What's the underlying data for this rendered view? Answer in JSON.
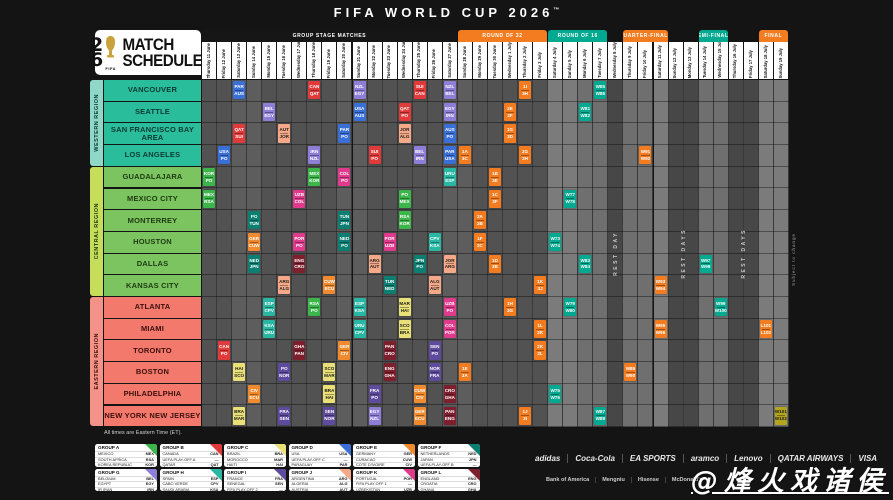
{
  "title": "FIFA WORLD CUP 2026",
  "title_tm": "™",
  "logo": {
    "digit_top": "2",
    "digit_bottom": "6",
    "line1": "MATCH",
    "line2": "SCHEDULE",
    "fifa": "FIFA"
  },
  "notes": {
    "times": "All times are Eastern Time (ET).",
    "margin": "Subject to change"
  },
  "header_sections": [
    {
      "key": "GS",
      "label": "GROUP STAGE MATCHES",
      "color": "#161616",
      "from": 0,
      "to": 16
    },
    {
      "key": "R32",
      "label": "ROUND OF 32",
      "color": "#f47c20",
      "from": 17,
      "to": 22
    },
    {
      "key": "R16",
      "label": "ROUND OF 16",
      "color": "#00a98f",
      "from": 23,
      "to": 26
    },
    {
      "key": "QF",
      "label": "QUARTER-FINALS",
      "color": "#f47c20",
      "from": 28,
      "to": 30
    },
    {
      "key": "SF",
      "label": "SEMI-FINALS",
      "color": "#00a98f",
      "from": 33,
      "to": 34
    },
    {
      "key": "FIN",
      "label": "FINAL",
      "color": "#f47c20",
      "from": 37,
      "to": 38
    }
  ],
  "rest_blocks": [
    {
      "from": 27,
      "to": 27,
      "label": "REST DAY"
    },
    {
      "from": 31,
      "to": 32,
      "label": "REST DAYS"
    },
    {
      "from": 35,
      "to": 36,
      "label": "REST DAYS"
    }
  ],
  "columns": [
    {
      "day": "Thursday",
      "date": "11 June",
      "sec": "GS",
      "we": false
    },
    {
      "day": "Friday",
      "date": "12 June",
      "sec": "GS",
      "we": false
    },
    {
      "day": "Saturday",
      "date": "13 June",
      "sec": "GS",
      "we": true
    },
    {
      "day": "Sunday",
      "date": "14 June",
      "sec": "GS",
      "we": true
    },
    {
      "day": "Monday",
      "date": "15 June",
      "sec": "GS",
      "we": false
    },
    {
      "day": "Tuesday",
      "date": "16 June",
      "sec": "GS",
      "we": false
    },
    {
      "day": "Wednesday",
      "date": "17 June",
      "sec": "GS",
      "we": false
    },
    {
      "day": "Thursday",
      "date": "18 June",
      "sec": "GS",
      "we": false
    },
    {
      "day": "Friday",
      "date": "19 June",
      "sec": "GS",
      "we": false
    },
    {
      "day": "Saturday",
      "date": "20 June",
      "sec": "GS",
      "we": true
    },
    {
      "day": "Sunday",
      "date": "21 June",
      "sec": "GS",
      "we": true
    },
    {
      "day": "Monday",
      "date": "22 June",
      "sec": "GS",
      "we": false
    },
    {
      "day": "Tuesday",
      "date": "23 June",
      "sec": "GS",
      "we": false
    },
    {
      "day": "Wednesday",
      "date": "24 June",
      "sec": "GS",
      "we": false
    },
    {
      "day": "Thursday",
      "date": "25 June",
      "sec": "GS",
      "we": false
    },
    {
      "day": "Friday",
      "date": "26 June",
      "sec": "GS",
      "we": false
    },
    {
      "day": "Saturday",
      "date": "27 June",
      "sec": "GS",
      "we": true
    },
    {
      "day": "Sunday",
      "date": "28 June",
      "sec": "R32",
      "we": true
    },
    {
      "day": "Monday",
      "date": "29 June",
      "sec": "R32",
      "we": false
    },
    {
      "day": "Tuesday",
      "date": "30 June",
      "sec": "R32",
      "we": false
    },
    {
      "day": "Wednesday",
      "date": "1 July",
      "sec": "R32",
      "we": false
    },
    {
      "day": "Thursday",
      "date": "2 July",
      "sec": "R32",
      "we": false
    },
    {
      "day": "Friday",
      "date": "3 July",
      "sec": "R32",
      "we": false
    },
    {
      "day": "Saturday",
      "date": "4 July",
      "sec": "R16",
      "we": true
    },
    {
      "day": "Sunday",
      "date": "5 July",
      "sec": "R16",
      "we": true
    },
    {
      "day": "Monday",
      "date": "6 July",
      "sec": "R16",
      "we": false
    },
    {
      "day": "Tuesday",
      "date": "7 July",
      "sec": "R16",
      "we": false
    },
    {
      "day": "Wednesday",
      "date": "8 July",
      "sec": "REST",
      "we": false
    },
    {
      "day": "Thursday",
      "date": "9 July",
      "sec": "QF",
      "we": false
    },
    {
      "day": "Friday",
      "date": "10 July",
      "sec": "QF",
      "we": false
    },
    {
      "day": "Saturday",
      "date": "11 July",
      "sec": "QF",
      "we": true
    },
    {
      "day": "Sunday",
      "date": "12 July",
      "sec": "REST",
      "we": true
    },
    {
      "day": "Monday",
      "date": "13 July",
      "sec": "REST",
      "we": false
    },
    {
      "day": "Tuesday",
      "date": "14 July",
      "sec": "SF",
      "we": false
    },
    {
      "day": "Wednesday",
      "date": "15 July",
      "sec": "SF",
      "we": false
    },
    {
      "day": "Thursday",
      "date": "16 July",
      "sec": "REST",
      "we": false
    },
    {
      "day": "Friday",
      "date": "17 July",
      "sec": "REST",
      "we": false
    },
    {
      "day": "Saturday",
      "date": "18 July",
      "sec": "FIN",
      "we": true
    },
    {
      "day": "Sunday",
      "date": "19 July",
      "sec": "FIN",
      "we": true
    }
  ],
  "regions": [
    {
      "name": "WESTERN REGION",
      "strip_color": "#8fd8c8",
      "city_color": "#29bd9c",
      "text_color": "#0c3a31",
      "cities": [
        "VANCOUVER",
        "SEATTLE",
        "SAN FRANCISCO BAY AREA",
        "LOS ANGELES"
      ]
    },
    {
      "name": "CENTRAL REGION",
      "strip_color": "#c5dd58",
      "city_color": "#7cc45f",
      "text_color": "#1d3a12",
      "cities": [
        "GUADALAJARA",
        "MEXICO CITY",
        "MONTERREY",
        "HOUSTON",
        "DALLAS",
        "KANSAS CITY"
      ]
    },
    {
      "name": "EASTERN REGION",
      "strip_color": "#f59287",
      "city_color": "#f3796d",
      "text_color": "#3d100c",
      "cities": [
        "ATLANTA",
        "MIAMI",
        "TORONTO",
        "BOSTON",
        "PHILADELPHIA",
        "NEW YORK NEW JERSEY"
      ]
    }
  ],
  "phase_colors": {
    "A": "#3cb54a",
    "B": "#e03a3a",
    "C": "#e9e178",
    "D": "#3a6fd8",
    "E": "#f08a2e",
    "F": "#0c7f72",
    "G": "#8f7ed8",
    "H": "#27b7a2",
    "I": "#5f4b9e",
    "J": "#f5a988",
    "K": "#e03a8c",
    "L": "#7e1f2e",
    "R32": "#f47c20",
    "R16": "#00a98f",
    "QF": "#f47c20",
    "SF": "#00a98f",
    "BR": "#f47c20",
    "FIN": "#b3a51e"
  },
  "dark_text_phases": [
    "C",
    "J",
    "FIN"
  ],
  "matches": [
    [
      0,
      2,
      "D",
      "PAR",
      "AUS"
    ],
    [
      0,
      7,
      "B",
      "CAN",
      "QAT"
    ],
    [
      0,
      10,
      "G",
      "NZL",
      "EGY"
    ],
    [
      0,
      14,
      "B",
      "SUI",
      "CAN"
    ],
    [
      0,
      16,
      "G",
      "NZL",
      "BEL"
    ],
    [
      1,
      4,
      "G",
      "BEL",
      "EGY"
    ],
    [
      1,
      10,
      "D",
      "USA",
      "AUS"
    ],
    [
      1,
      13,
      "B",
      "QAT",
      "PO"
    ],
    [
      1,
      16,
      "G",
      "EGY",
      "IRN"
    ],
    [
      2,
      2,
      "B",
      "QAT",
      "SUI"
    ],
    [
      2,
      5,
      "J",
      "AUT",
      "JOR"
    ],
    [
      2,
      9,
      "D",
      "PAR",
      "PO"
    ],
    [
      2,
      13,
      "J",
      "JOR",
      "ALG"
    ],
    [
      2,
      16,
      "D",
      "AUS",
      "PO"
    ],
    [
      3,
      1,
      "D",
      "USA",
      "PO"
    ],
    [
      3,
      7,
      "G",
      "IRN",
      "NZL"
    ],
    [
      3,
      11,
      "B",
      "SUI",
      "PO"
    ],
    [
      3,
      14,
      "G",
      "BEL",
      "IRN"
    ],
    [
      3,
      16,
      "D",
      "PAR",
      "USA"
    ],
    [
      4,
      0,
      "A",
      "KOR",
      "PO"
    ],
    [
      4,
      7,
      "A",
      "MEX",
      "KOR"
    ],
    [
      4,
      9,
      "K",
      "COL",
      "PO"
    ],
    [
      4,
      16,
      "H",
      "URU",
      "ESP"
    ],
    [
      5,
      0,
      "A",
      "MEX",
      "RSA"
    ],
    [
      5,
      6,
      "K",
      "UZB",
      "COL"
    ],
    [
      5,
      13,
      "A",
      "PO",
      "MEX"
    ],
    [
      6,
      3,
      "F",
      "PO",
      "TUN"
    ],
    [
      6,
      9,
      "F",
      "TUN",
      "JPN"
    ],
    [
      6,
      13,
      "A",
      "RSA",
      "KOR"
    ],
    [
      7,
      3,
      "E",
      "GER",
      "CUW"
    ],
    [
      7,
      6,
      "K",
      "POR",
      "PO"
    ],
    [
      7,
      9,
      "F",
      "NED",
      "PO"
    ],
    [
      7,
      12,
      "K",
      "POR",
      "UZB"
    ],
    [
      7,
      15,
      "H",
      "CPV",
      "KSA"
    ],
    [
      8,
      3,
      "F",
      "NED",
      "JPN"
    ],
    [
      8,
      6,
      "L",
      "ENG",
      "CRO"
    ],
    [
      8,
      11,
      "J",
      "ARG",
      "AUT"
    ],
    [
      8,
      14,
      "F",
      "JPN",
      "PO"
    ],
    [
      8,
      16,
      "J",
      "JOR",
      "ARG"
    ],
    [
      9,
      5,
      "J",
      "ARG",
      "ALG"
    ],
    [
      9,
      8,
      "E",
      "CUW",
      "ECU"
    ],
    [
      9,
      12,
      "F",
      "TUN",
      "NED"
    ],
    [
      9,
      15,
      "J",
      "ALG",
      "AUT"
    ],
    [
      10,
      4,
      "H",
      "ESP",
      "CPV"
    ],
    [
      10,
      7,
      "A",
      "RSA",
      "PO"
    ],
    [
      10,
      10,
      "H",
      "ESP",
      "KSA"
    ],
    [
      10,
      13,
      "C",
      "MAR",
      "HAI"
    ],
    [
      10,
      16,
      "K",
      "UZB",
      "PO"
    ],
    [
      11,
      4,
      "H",
      "KSA",
      "URU"
    ],
    [
      11,
      10,
      "H",
      "URU",
      "CPV"
    ],
    [
      11,
      13,
      "C",
      "SCO",
      "BRA"
    ],
    [
      11,
      16,
      "K",
      "COL",
      "POR"
    ],
    [
      12,
      1,
      "B",
      "CAN",
      "PO"
    ],
    [
      12,
      6,
      "L",
      "GHA",
      "PAN"
    ],
    [
      12,
      9,
      "E",
      "GER",
      "CIV"
    ],
    [
      12,
      12,
      "L",
      "PAN",
      "CRO"
    ],
    [
      12,
      15,
      "I",
      "SEN",
      "PO"
    ],
    [
      13,
      2,
      "C",
      "HAI",
      "SCO"
    ],
    [
      13,
      5,
      "I",
      "PO",
      "NOR"
    ],
    [
      13,
      8,
      "C",
      "SCO",
      "MAR"
    ],
    [
      13,
      12,
      "L",
      "ENG",
      "GHA"
    ],
    [
      13,
      15,
      "I",
      "NOR",
      "FRA"
    ],
    [
      14,
      3,
      "E",
      "CIV",
      "ECU"
    ],
    [
      14,
      8,
      "C",
      "BRA",
      "HAI"
    ],
    [
      14,
      11,
      "I",
      "FRA",
      "PO"
    ],
    [
      14,
      14,
      "E",
      "CUW",
      "CIV"
    ],
    [
      14,
      16,
      "L",
      "CRO",
      "GHA"
    ],
    [
      15,
      2,
      "C",
      "BRA",
      "MAR"
    ],
    [
      15,
      5,
      "I",
      "FRA",
      "SEN"
    ],
    [
      15,
      8,
      "I",
      "SEN",
      "NOR"
    ],
    [
      15,
      11,
      "G",
      "EGY",
      "NZL"
    ],
    [
      15,
      14,
      "E",
      "GER",
      "ECU"
    ],
    [
      15,
      16,
      "L",
      "PAN",
      "ENG"
    ],
    [
      3,
      17,
      "R32",
      "1A",
      "3C"
    ],
    [
      13,
      17,
      "R32",
      "1E",
      "3A"
    ],
    [
      7,
      18,
      "R32",
      "1F",
      "2C"
    ],
    [
      6,
      18,
      "R32",
      "2A",
      "2B"
    ],
    [
      4,
      19,
      "R32",
      "1B",
      "3E"
    ],
    [
      5,
      19,
      "R32",
      "1C",
      "3F"
    ],
    [
      8,
      19,
      "R32",
      "1D",
      "3B"
    ],
    [
      2,
      20,
      "R32",
      "1G",
      "3D"
    ],
    [
      1,
      20,
      "R32",
      "2E",
      "2F"
    ],
    [
      10,
      20,
      "R32",
      "1H",
      "3G"
    ],
    [
      0,
      21,
      "R32",
      "1I",
      "3H"
    ],
    [
      3,
      21,
      "R32",
      "2G",
      "2H"
    ],
    [
      15,
      21,
      "R32",
      "1J",
      "3I"
    ],
    [
      9,
      22,
      "R32",
      "1K",
      "3J"
    ],
    [
      11,
      22,
      "R32",
      "1L",
      "3K"
    ],
    [
      12,
      22,
      "R32",
      "2K",
      "2L"
    ],
    [
      7,
      23,
      "R16",
      "W73",
      "W74"
    ],
    [
      14,
      23,
      "R16",
      "W75",
      "W76"
    ],
    [
      5,
      24,
      "R16",
      "W77",
      "W78"
    ],
    [
      10,
      24,
      "R16",
      "W79",
      "W80"
    ],
    [
      1,
      25,
      "R16",
      "W81",
      "W82"
    ],
    [
      8,
      25,
      "R16",
      "W83",
      "W84"
    ],
    [
      0,
      26,
      "R16",
      "W85",
      "W86"
    ],
    [
      15,
      26,
      "R16",
      "W87",
      "W88"
    ],
    [
      13,
      28,
      "QF",
      "W89",
      "W90"
    ],
    [
      3,
      29,
      "QF",
      "W91",
      "W92"
    ],
    [
      9,
      30,
      "QF",
      "W93",
      "W94"
    ],
    [
      11,
      30,
      "QF",
      "W95",
      "W96"
    ],
    [
      8,
      33,
      "SF",
      "W97",
      "W98"
    ],
    [
      10,
      34,
      "SF",
      "W99",
      "W100"
    ],
    [
      11,
      37,
      "BR",
      "L101",
      "L102"
    ],
    [
      15,
      38,
      "FIN",
      "W101",
      "W102"
    ]
  ],
  "groups": [
    {
      "id": "GROUP A",
      "color": "#3cb54a",
      "teams": [
        [
          "MEXICO",
          "MEX"
        ],
        [
          "SOUTH AFRICA",
          "RSA"
        ],
        [
          "KOREA REPUBLIC",
          "KOR"
        ],
        [
          "UEFA PLAY-OFF D",
          "—"
        ]
      ]
    },
    {
      "id": "GROUP B",
      "color": "#e03a3a",
      "teams": [
        [
          "CANADA",
          "CAN"
        ],
        [
          "UEFA PLAY-OFF A",
          "—"
        ],
        [
          "QATAR",
          "QAT"
        ],
        [
          "SWITZERLAND",
          "SUI"
        ]
      ]
    },
    {
      "id": "GROUP C",
      "color": "#e9e178",
      "teams": [
        [
          "BRAZIL",
          "BRA"
        ],
        [
          "MOROCCO",
          "MAR"
        ],
        [
          "HAITI",
          "HAI"
        ],
        [
          "SCOTLAND",
          "SCO"
        ]
      ]
    },
    {
      "id": "GROUP D",
      "color": "#3a6fd8",
      "teams": [
        [
          "USA",
          "USA"
        ],
        [
          "UEFA PLAY-OFF C",
          "—"
        ],
        [
          "PARAGUAY",
          "PAR"
        ],
        [
          "AUSTRALIA",
          "AUS"
        ]
      ]
    },
    {
      "id": "GROUP E",
      "color": "#f08a2e",
      "teams": [
        [
          "GERMANY",
          "GER"
        ],
        [
          "CURACAO",
          "CUW"
        ],
        [
          "COTE D'IVOIRE",
          "CIV"
        ],
        [
          "ECUADOR",
          "ECU"
        ]
      ]
    },
    {
      "id": "GROUP F",
      "color": "#0c7f72",
      "teams": [
        [
          "NETHERLANDS",
          "NED"
        ],
        [
          "JAPAN",
          "JPN"
        ],
        [
          "UEFA PLAY-OFF B",
          "—"
        ],
        [
          "TUNISIA",
          "TUN"
        ]
      ]
    },
    {
      "id": "GROUP G",
      "color": "#8f7ed8",
      "teams": [
        [
          "BELGIUM",
          "BEL"
        ],
        [
          "EGYPT",
          "EGY"
        ],
        [
          "IR IRAN",
          "IRN"
        ],
        [
          "NEW ZEALAND",
          "NZL"
        ]
      ]
    },
    {
      "id": "GROUP H",
      "color": "#27b7a2",
      "teams": [
        [
          "SPAIN",
          "ESP"
        ],
        [
          "CABO VERDE",
          "CPV"
        ],
        [
          "SAUDI ARABIA",
          "KSA"
        ],
        [
          "URUGUAY",
          "URU"
        ]
      ]
    },
    {
      "id": "GROUP I",
      "color": "#5f4b9e",
      "teams": [
        [
          "FRANCE",
          "FRA"
        ],
        [
          "SENEGAL",
          "SEN"
        ],
        [
          "FIFA PLAY-OFF 2",
          "—"
        ],
        [
          "NORWAY",
          "NOR"
        ]
      ]
    },
    {
      "id": "GROUP J",
      "color": "#f5a988",
      "teams": [
        [
          "ARGENTINA",
          "ARG"
        ],
        [
          "ALGERIA",
          "ALG"
        ],
        [
          "AUSTRIA",
          "AUT"
        ],
        [
          "JORDAN",
          "JOR"
        ]
      ]
    },
    {
      "id": "GROUP K",
      "color": "#e03a8c",
      "teams": [
        [
          "PORTUGAL",
          "POR"
        ],
        [
          "FIFA PLAY-OFF 1",
          "—"
        ],
        [
          "UZBEKISTAN",
          "UZB"
        ],
        [
          "COLOMBIA",
          "COL"
        ]
      ]
    },
    {
      "id": "GROUP L",
      "color": "#7e1f2e",
      "teams": [
        [
          "ENGLAND",
          "ENG"
        ],
        [
          "CROATIA",
          "CRO"
        ],
        [
          "GHANA",
          "GHA"
        ],
        [
          "PANAMA",
          "PAN"
        ]
      ]
    }
  ],
  "sponsors_row1": [
    "adidas",
    "Coca-Cola",
    "EA SPORTS",
    "aramco",
    "Lenovo",
    "QATAR AIRWAYS",
    "VISA"
  ],
  "sponsors_row2": [
    "Bank of America",
    "Mengniu",
    "Hisense",
    "McDonald's"
  ],
  "watermark": "@烽火戏诸侯"
}
